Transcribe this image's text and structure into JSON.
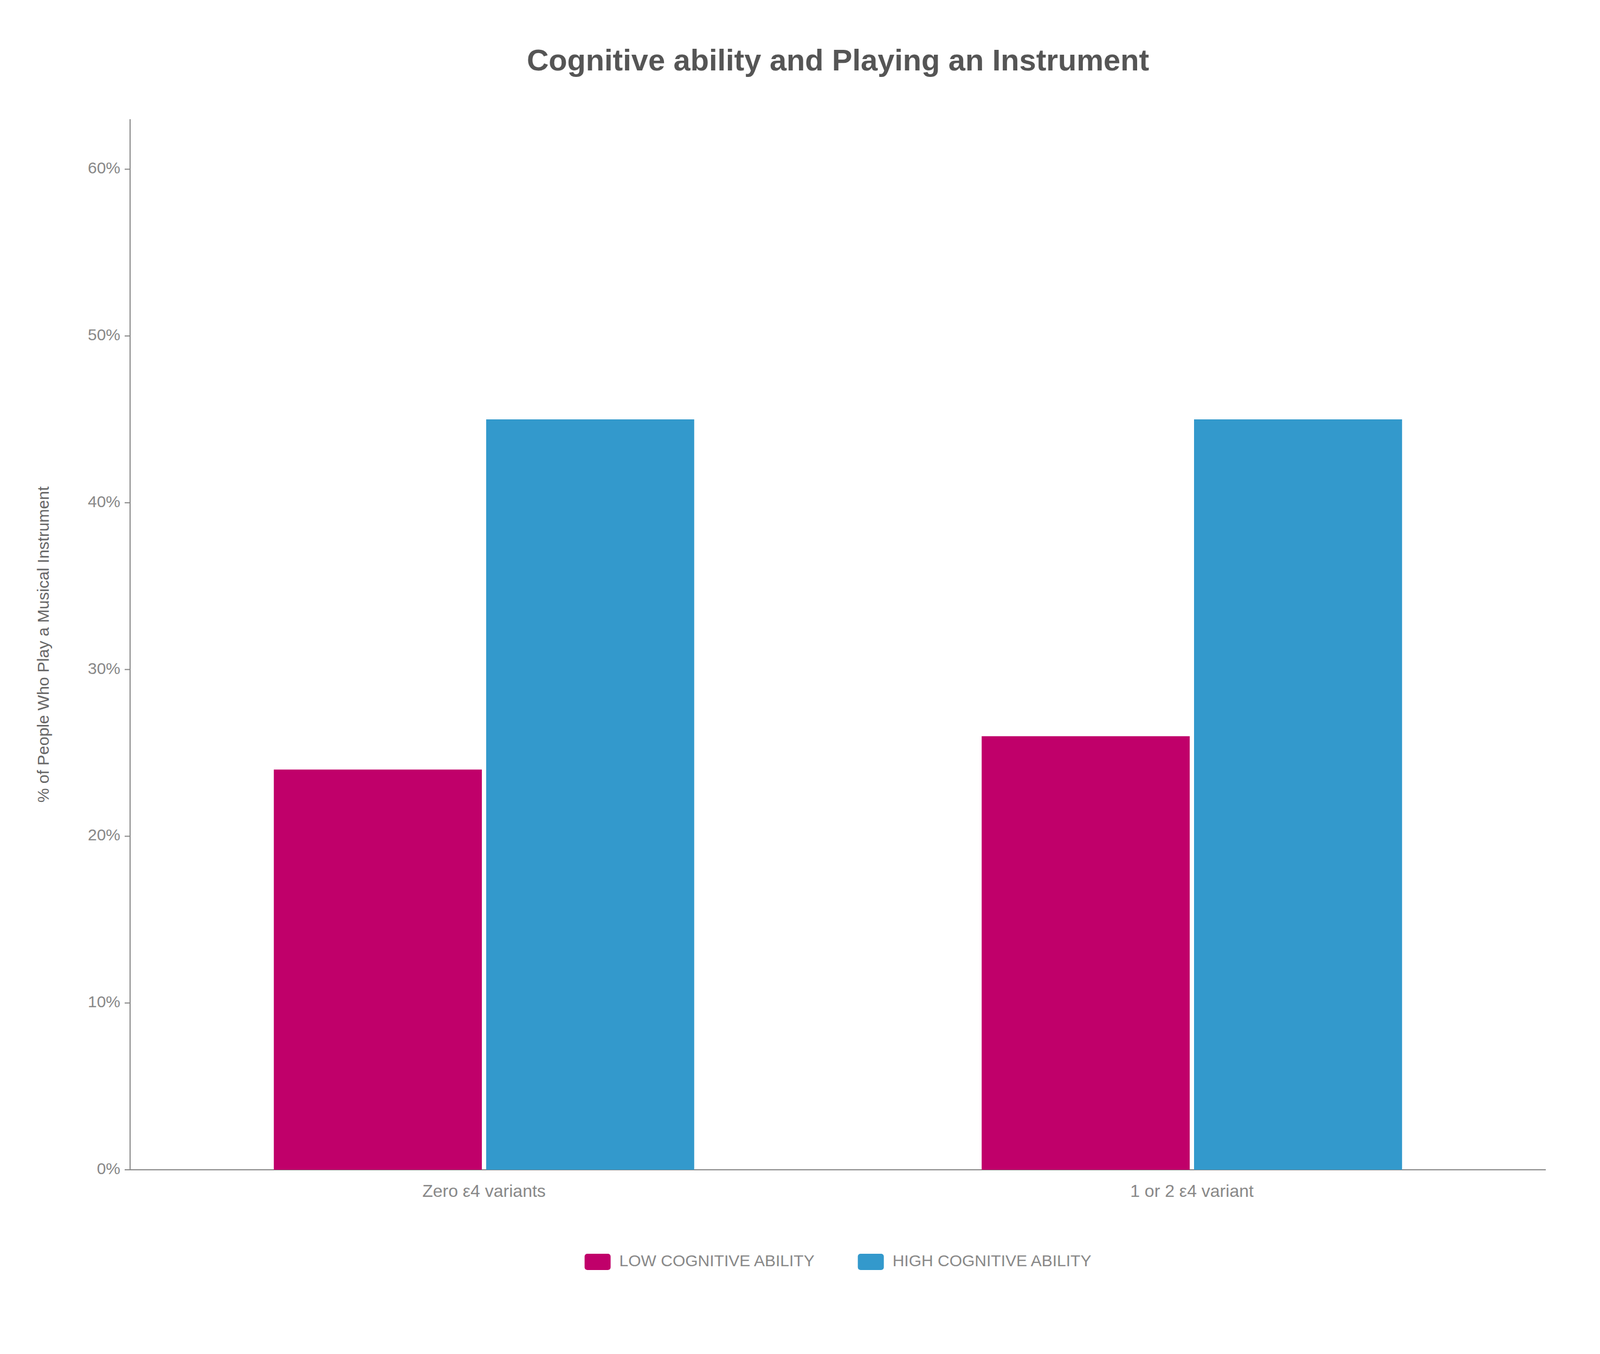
{
  "chart_data": {
    "type": "bar",
    "title": "Cognitive ability and Playing an Instrument",
    "ylabel": "% of People Who Play a Musical Instrument",
    "categories": [
      "Zero ε4 variants",
      "1 or 2 ε4 variant"
    ],
    "series": [
      {
        "name": "LOW COGNITIVE ABILITY",
        "color": "#c0006a",
        "values": [
          0.24,
          0.26
        ]
      },
      {
        "name": "HIGH COGNITIVE ABILITY",
        "color": "#3399cc",
        "values": [
          0.45,
          0.45
        ]
      }
    ],
    "ylim": [
      0,
      0.63
    ],
    "yticks": [
      {
        "value": 0.0,
        "label": "0%"
      },
      {
        "value": 0.1,
        "label": "10%"
      },
      {
        "value": 0.2,
        "label": "20%"
      },
      {
        "value": 0.3,
        "label": "30%"
      },
      {
        "value": 0.4,
        "label": "40%"
      },
      {
        "value": 0.5,
        "label": "50%"
      },
      {
        "value": 0.6,
        "label": "60%"
      }
    ],
    "grid": false,
    "legend": "bottom"
  }
}
